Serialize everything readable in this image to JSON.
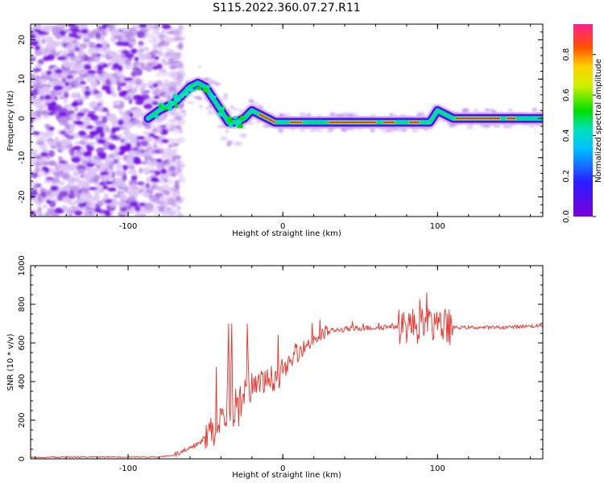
{
  "title": "S115.2022.360.07.27.R11",
  "colors": {
    "line": "#e8302a",
    "axis": "#000000",
    "background": "#ffffff"
  },
  "chart_data": [
    {
      "type": "heatmap",
      "xlabel": "Height of straight line (km)",
      "ylabel": "Frequency (Hz)",
      "xlim": [
        -163,
        168
      ],
      "ylim": [
        -25,
        24
      ],
      "x_ticks": [
        -100,
        0,
        100
      ],
      "y_ticks": [
        -20,
        -10,
        0,
        10,
        20
      ],
      "colorbar": {
        "label": "Normalized spectral amplitude",
        "range": [
          0,
          0.95
        ],
        "ticks": [
          0.0,
          0.2,
          0.4,
          0.6,
          0.8
        ],
        "colormap": "rainbow (purple-blue-cyan-green-yellow-red-pink)"
      },
      "ridge": {
        "description": "central frequency ridge",
        "x": [
          -87,
          -80,
          -75,
          -70,
          -65,
          -60,
          -55,
          -50,
          -45,
          -40,
          -35,
          -30,
          -25,
          -20,
          -15,
          -10,
          -5,
          0,
          10,
          20,
          40,
          60,
          70,
          80,
          90,
          95,
          100,
          110,
          130,
          150,
          168
        ],
        "y": [
          0,
          2,
          3,
          4,
          6,
          8,
          9,
          8,
          5,
          2,
          -1,
          -1,
          0,
          2,
          1,
          0,
          -1,
          -1,
          -1,
          -1,
          -1,
          -1,
          -1,
          -1,
          -1,
          -1,
          2,
          0,
          0,
          0,
          0
        ]
      },
      "noise_region": [
        -163,
        -75
      ]
    },
    {
      "type": "line",
      "xlabel": "Height of straight line (km)",
      "ylabel": "SNR (10 * v/v)",
      "xlim": [
        -163,
        168
      ],
      "ylim": [
        0,
        1000
      ],
      "x_ticks": [
        -100,
        0,
        100
      ],
      "y_ticks": [
        0,
        200,
        400,
        600,
        800,
        1000
      ],
      "series": [
        {
          "envelope_x": [
            -163,
            -100,
            -80,
            -70,
            -60,
            -50,
            -40,
            -30,
            -20,
            -10,
            0,
            10,
            20,
            30,
            40,
            50,
            60,
            70,
            80,
            90,
            100,
            110,
            120,
            140,
            168
          ],
          "envelope_y": [
            8,
            10,
            10,
            20,
            50,
            110,
            200,
            280,
            350,
            400,
            450,
            550,
            620,
            660,
            670,
            675,
            680,
            685,
            690,
            690,
            690,
            680,
            680,
            680,
            690
          ]
        }
      ]
    }
  ]
}
